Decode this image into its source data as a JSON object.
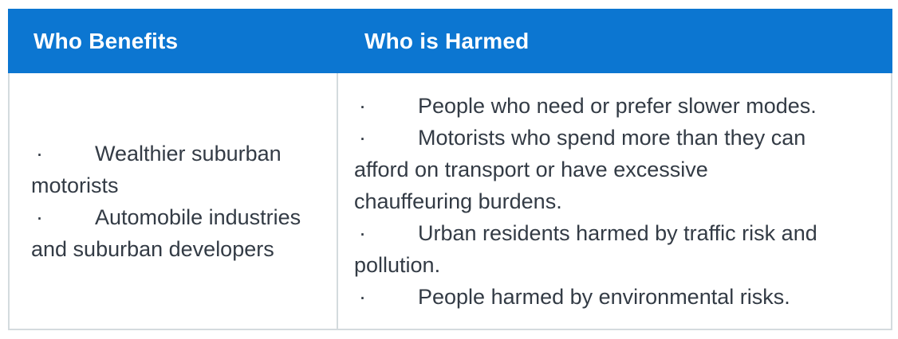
{
  "table": {
    "bullet": "·",
    "columns": [
      {
        "id": "who-benefits",
        "header": "Who Benefits",
        "items": [
          "Wealthier suburban motorists",
          "Automobile industries and suburban developers"
        ]
      },
      {
        "id": "who-is-harmed",
        "header": "Who is Harmed",
        "items": [
          "People who need or prefer slower modes.",
          "Motorists who spend more than they can afford on transport or have excessive chauffeuring burdens.",
          "Urban residents harmed by traffic risk and pollution.",
          "People harmed by environmental risks."
        ]
      }
    ],
    "colors": {
      "header_bg": "#0c76d1",
      "header_text": "#ffffff",
      "body_text": "#333b45",
      "border": "#d4dbde",
      "page_bg": "#ffffff"
    }
  }
}
